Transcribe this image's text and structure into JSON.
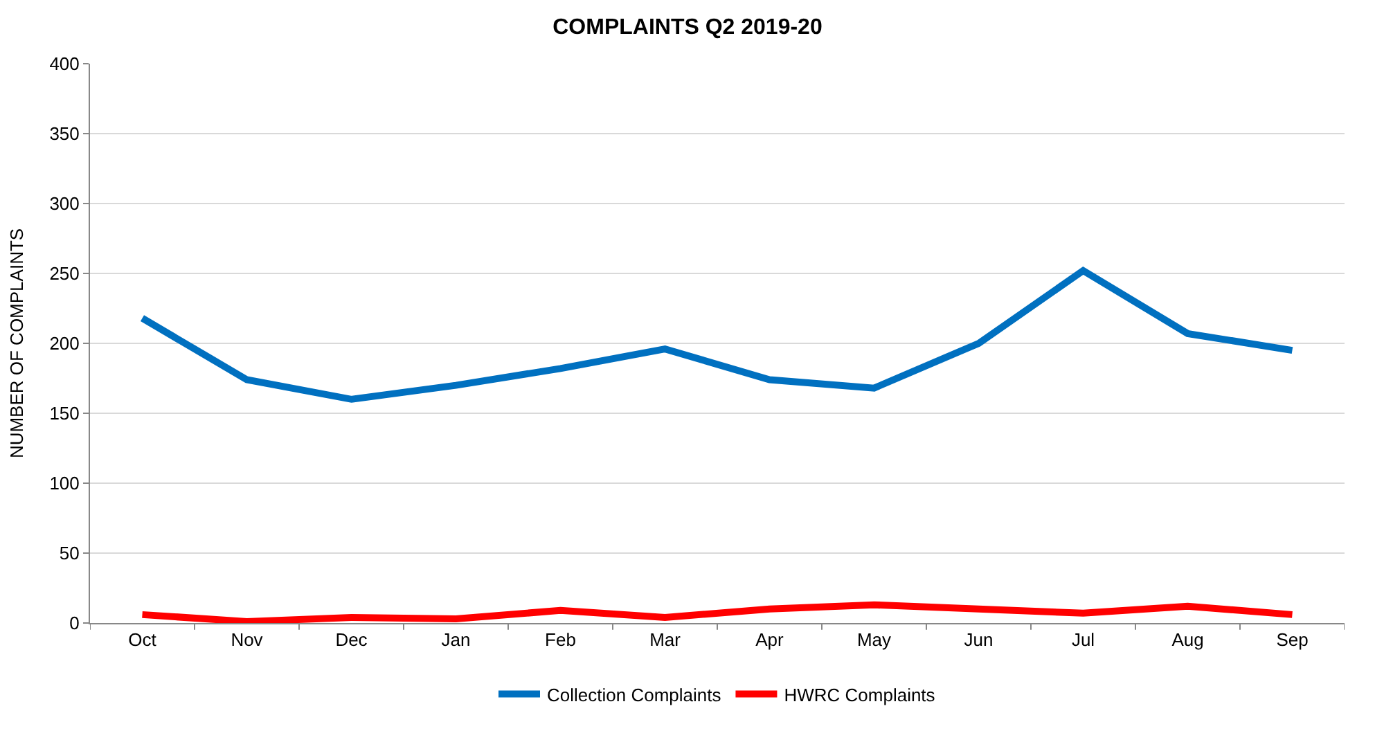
{
  "chart_data": {
    "type": "line",
    "title": "COMPLAINTS Q2 2019-20",
    "ylabel": "NUMBER OF COMPLAINTS",
    "categories": [
      "Oct",
      "Nov",
      "Dec",
      "Jan",
      "Feb",
      "Mar",
      "Apr",
      "May",
      "Jun",
      "Jul",
      "Aug",
      "Sep"
    ],
    "series": [
      {
        "name": "Collection Complaints",
        "color": "#0070c0",
        "values": [
          218,
          174,
          160,
          170,
          182,
          196,
          174,
          168,
          200,
          252,
          207,
          195
        ]
      },
      {
        "name": "HWRC Complaints",
        "color": "#ff0000",
        "values": [
          6,
          1,
          4,
          3,
          9,
          4,
          10,
          13,
          10,
          7,
          12,
          6
        ]
      }
    ],
    "ylim": [
      0,
      400
    ],
    "yticks": [
      0,
      50,
      100,
      150,
      200,
      250,
      300,
      350,
      400
    ],
    "grid": "y",
    "legend": "bottom",
    "marker": "none",
    "line_style": "solid"
  }
}
